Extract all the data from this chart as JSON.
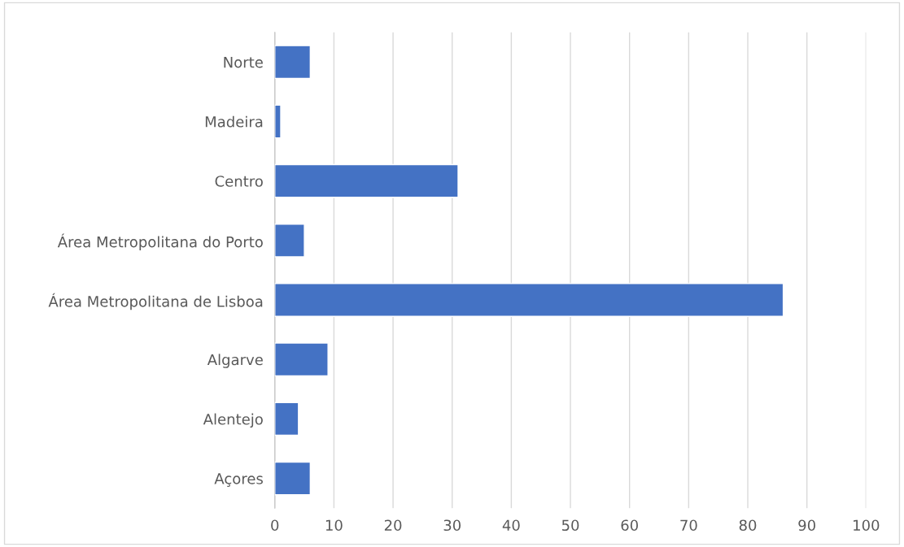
{
  "chart_data": {
    "type": "bar",
    "orientation": "horizontal",
    "categories": [
      "Norte",
      "Madeira",
      "Centro",
      "Área Metropolitana do Porto",
      "Área Metropolitana de Lisboa",
      "Algarve",
      "Alentejo",
      "Açores"
    ],
    "values": [
      6,
      1,
      31,
      5,
      86,
      9,
      4,
      6
    ],
    "color": "#4472c4",
    "xlim": [
      0,
      100
    ],
    "xticks": [
      0,
      10,
      20,
      30,
      40,
      50,
      60,
      70,
      80,
      90,
      100
    ],
    "grid": "x",
    "legend": false
  }
}
